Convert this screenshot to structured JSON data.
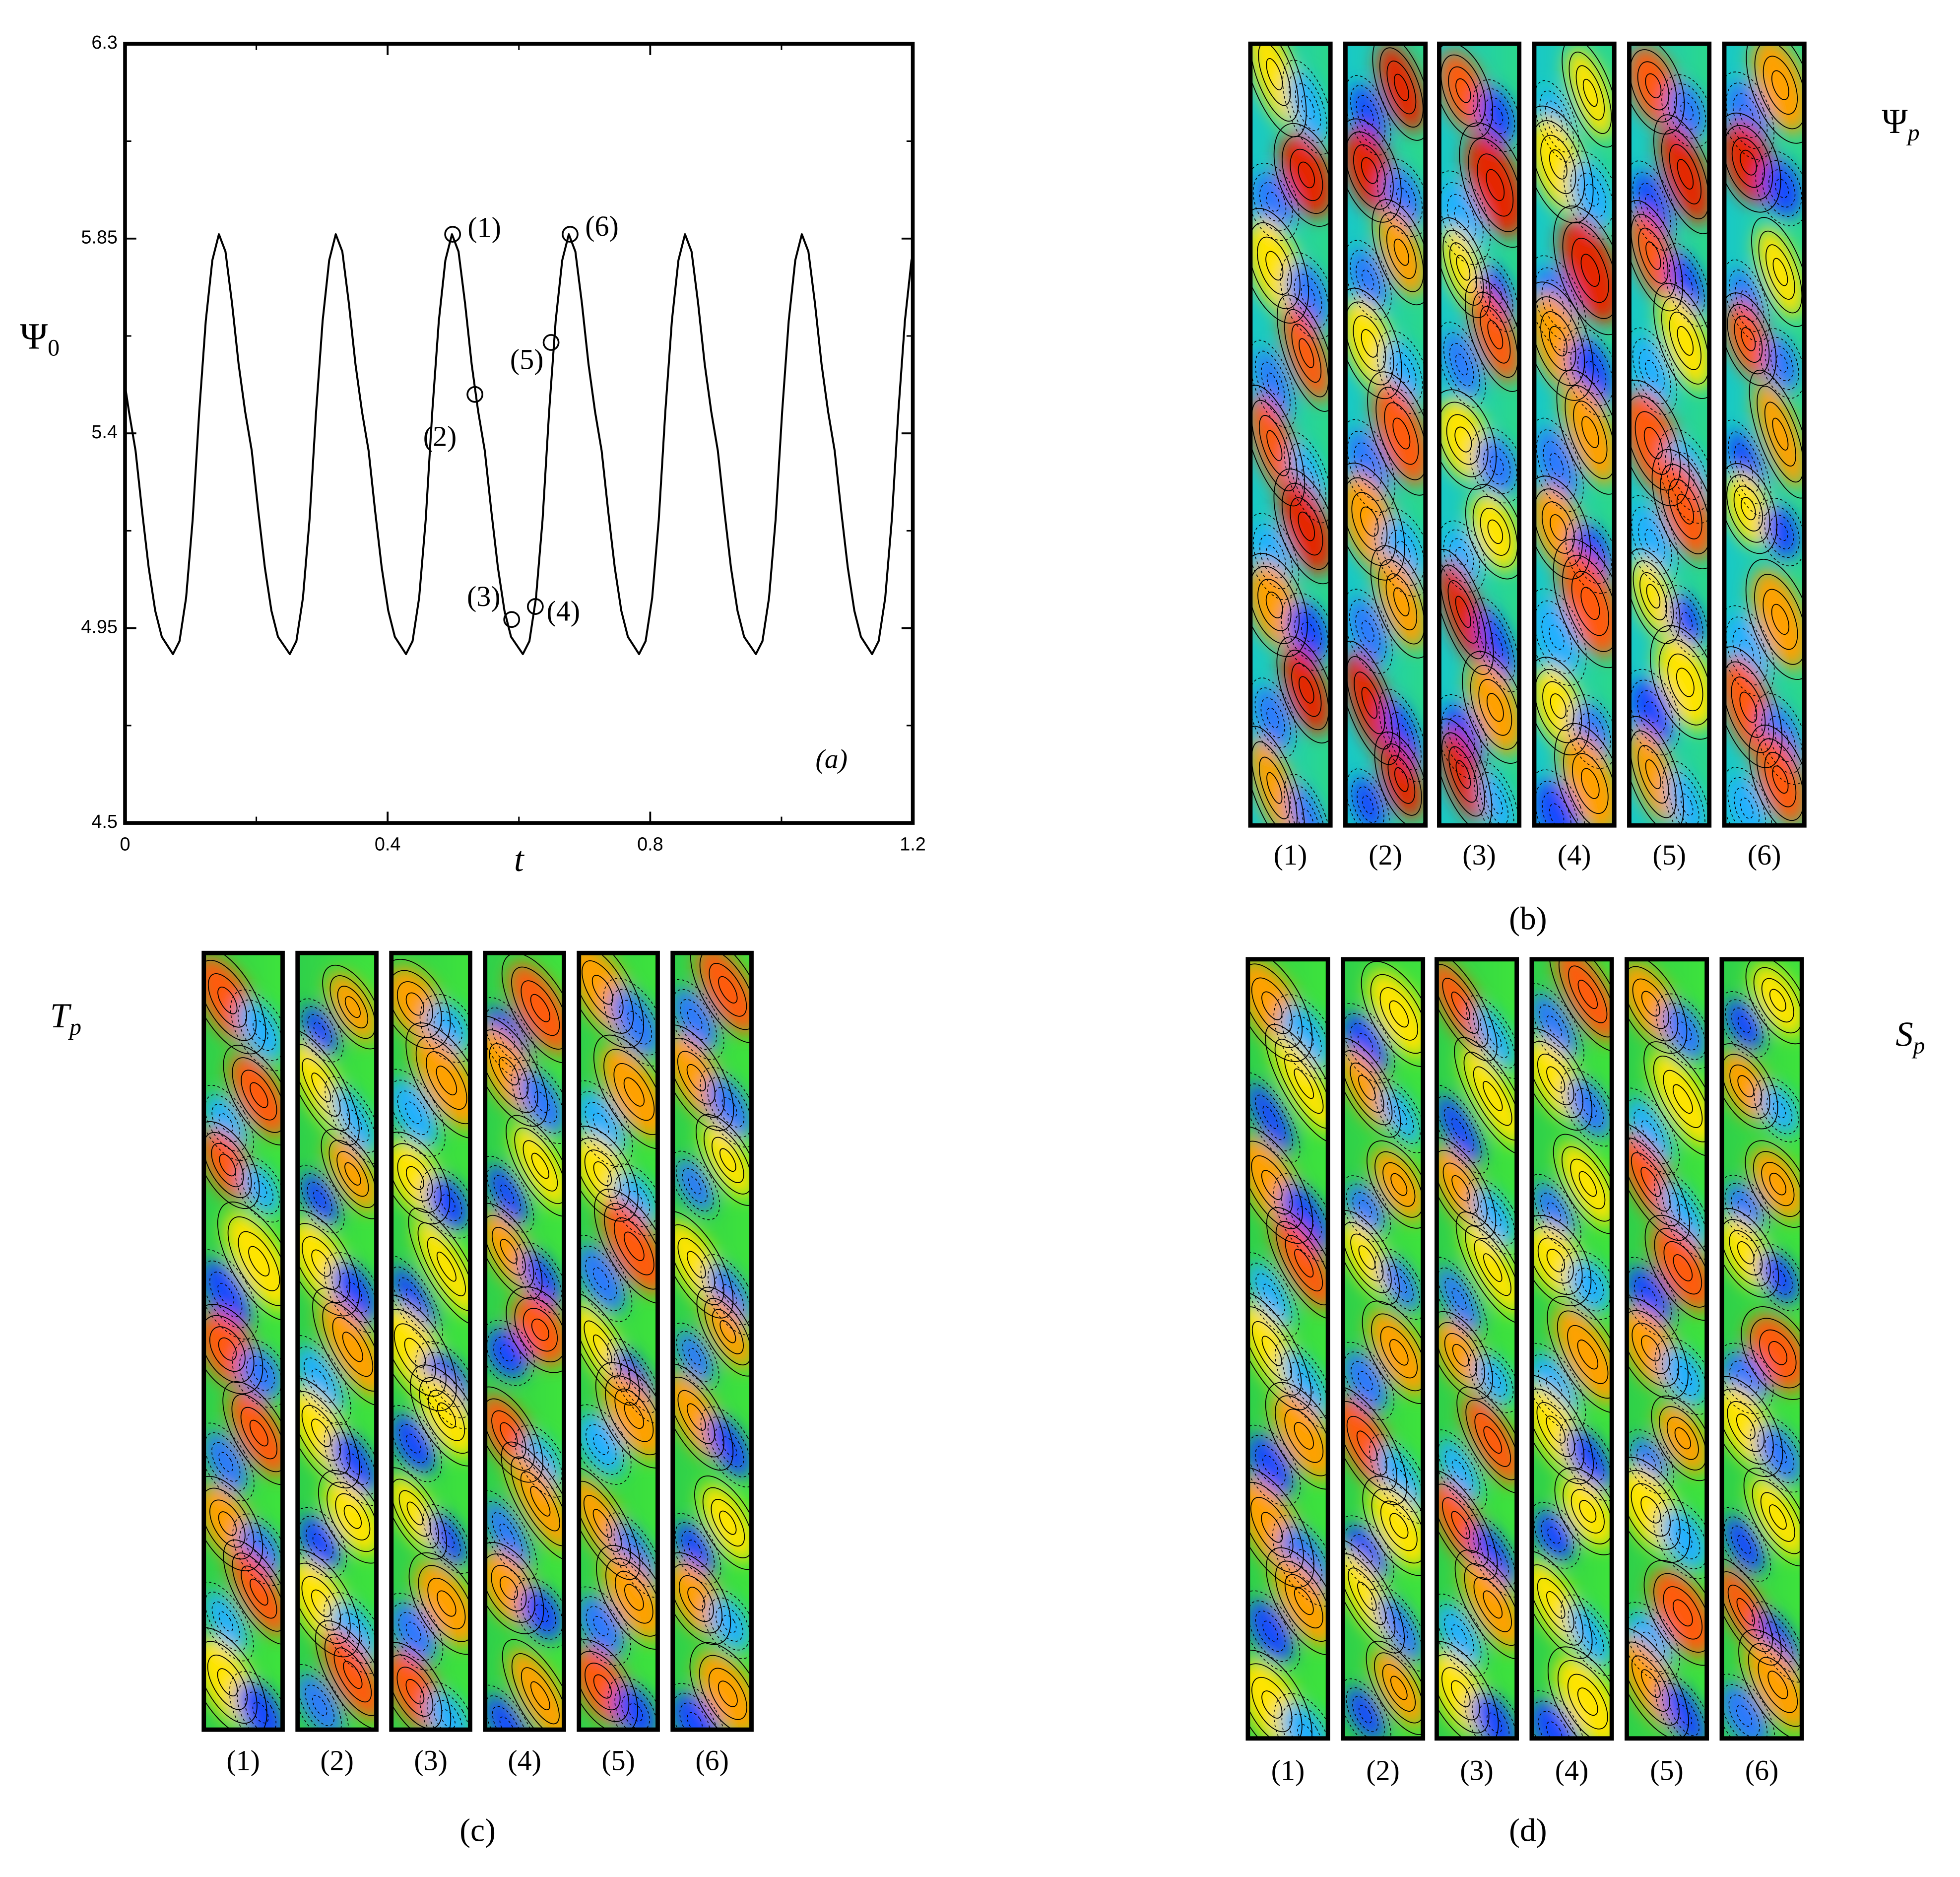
{
  "chart_data": {
    "type": "line",
    "y_label": {
      "symbol": "Ψ",
      "subscript": "0"
    },
    "x_label": "t",
    "annotation": "(a)",
    "x": [
      0,
      0.006,
      0.016,
      0.026,
      0.036,
      0.046,
      0.056,
      0.073,
      0.083,
      0.093,
      0.103,
      0.113,
      0.123,
      0.133,
      0.143,
      0.153,
      0.163,
      0.173,
      0.183,
      0.193,
      0.203,
      0.213,
      0.223,
      0.233,
      0.251,
      0.261,
      0.271,
      0.281,
      0.291,
      0.301,
      0.311,
      0.321,
      0.331,
      0.341,
      0.351,
      0.361,
      0.371,
      0.381,
      0.391,
      0.401,
      0.411,
      0.428,
      0.438,
      0.448,
      0.458,
      0.468,
      0.478,
      0.488,
      0.498,
      0.508,
      0.518,
      0.528,
      0.538,
      0.548,
      0.558,
      0.568,
      0.578,
      0.588,
      0.606,
      0.616,
      0.626,
      0.636,
      0.646,
      0.656,
      0.666,
      0.676,
      0.686,
      0.696,
      0.706,
      0.716,
      0.726,
      0.736,
      0.746,
      0.756,
      0.766,
      0.783,
      0.793,
      0.803,
      0.813,
      0.823,
      0.833,
      0.843,
      0.853,
      0.863,
      0.873,
      0.883,
      0.893,
      0.903,
      0.913,
      0.923,
      0.933,
      0.943,
      0.961,
      0.971,
      0.981,
      0.991,
      1.001,
      1.011,
      1.021,
      1.031,
      1.041,
      1.051,
      1.061,
      1.071,
      1.081,
      1.091,
      1.101,
      1.111,
      1.121,
      1.138,
      1.148,
      1.158,
      1.168,
      1.178,
      1.188,
      1.198,
      1.2
    ],
    "series": [
      {
        "color": "#000000",
        "values": [
          5.51,
          5.45,
          5.36,
          5.22,
          5.09,
          4.99,
          4.93,
          4.89,
          4.92,
          5.02,
          5.2,
          5.45,
          5.66,
          5.8,
          5.86,
          5.82,
          5.7,
          5.56,
          5.45,
          5.36,
          5.22,
          5.09,
          4.99,
          4.93,
          4.89,
          4.92,
          5.02,
          5.2,
          5.45,
          5.66,
          5.8,
          5.86,
          5.82,
          5.7,
          5.56,
          5.45,
          5.36,
          5.22,
          5.09,
          4.99,
          4.93,
          4.89,
          4.92,
          5.02,
          5.2,
          5.45,
          5.66,
          5.8,
          5.86,
          5.82,
          5.7,
          5.56,
          5.45,
          5.36,
          5.22,
          5.09,
          4.99,
          4.93,
          4.89,
          4.92,
          5.02,
          5.2,
          5.45,
          5.66,
          5.8,
          5.86,
          5.82,
          5.7,
          5.56,
          5.45,
          5.36,
          5.22,
          5.09,
          4.99,
          4.93,
          4.89,
          4.92,
          5.02,
          5.2,
          5.45,
          5.66,
          5.8,
          5.86,
          5.82,
          5.7,
          5.56,
          5.45,
          5.36,
          5.22,
          5.09,
          4.99,
          4.93,
          4.89,
          4.92,
          5.02,
          5.2,
          5.45,
          5.66,
          5.8,
          5.86,
          5.82,
          5.7,
          5.56,
          5.45,
          5.36,
          5.22,
          5.09,
          4.99,
          4.93,
          4.89,
          4.92,
          5.02,
          5.2,
          5.45,
          5.66,
          5.8,
          5.81
        ]
      }
    ],
    "markers": {
      "labels": [
        "(1)",
        "(2)",
        "(3)",
        "(4)",
        "(5)",
        "(6)"
      ],
      "x": [
        0.499,
        0.533,
        0.589,
        0.625,
        0.649,
        0.678
      ],
      "values": [
        5.86,
        5.49,
        4.97,
        5.0,
        5.61,
        5.86
      ]
    },
    "xlim": [
      0,
      1.2
    ],
    "xticks": [
      0,
      0.4,
      0.8,
      1.2
    ],
    "xminorticks": [
      0.2,
      0.6,
      1.0
    ],
    "ylim": [
      4.5,
      6.3
    ],
    "yticks": [
      4.5,
      4.95,
      5.4,
      5.85,
      6.3
    ],
    "yminorticks": [
      4.725,
      5.175,
      5.625,
      6.075
    ]
  },
  "panels": [
    {
      "field": {
        "symbol": "Ψ",
        "subscript": "p"
      },
      "strips": [
        "(1)",
        "(2)",
        "(3)",
        "(4)",
        "(5)",
        "(6)"
      ],
      "label": "(b)"
    },
    {
      "field": {
        "symbol": "T",
        "subscript": "p"
      },
      "strips": [
        "(1)",
        "(2)",
        "(3)",
        "(4)",
        "(5)",
        "(6)"
      ],
      "label": "(c)"
    },
    {
      "field": {
        "symbol": "S",
        "subscript": "p"
      },
      "strips": [
        "(1)",
        "(2)",
        "(3)",
        "(4)",
        "(5)",
        "(6)"
      ],
      "label": "(d)"
    }
  ]
}
